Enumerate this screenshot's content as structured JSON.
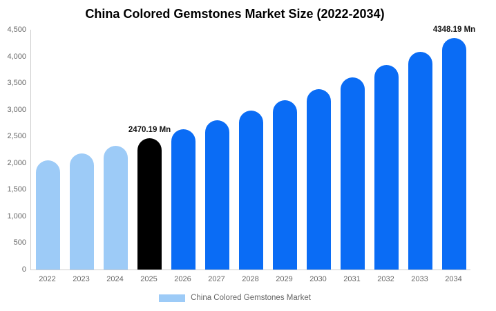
{
  "title": "China Colored Gemstones Market Size (2022-2034)",
  "colors": {
    "light_blue": "#9dcbf7",
    "blue": "#0a6cf5",
    "black": "#000000",
    "axis_line": "#cccccc",
    "tick_text": "#666666"
  },
  "legend": {
    "label": "China Colored Gemstones Market",
    "swatch_color": "#9dcbf7"
  },
  "chart_data": {
    "type": "bar",
    "title": "China Colored Gemstones Market Size (2022-2034)",
    "unit": "Mn",
    "categories": [
      "2022",
      "2023",
      "2024",
      "2025",
      "2026",
      "2027",
      "2028",
      "2029",
      "2030",
      "2031",
      "2032",
      "2033",
      "2034"
    ],
    "values": [
      2046,
      2178,
      2320,
      2470.19,
      2631,
      2801,
      2983,
      3177,
      3383,
      3603,
      3837,
      4086,
      4348.19
    ],
    "bar_color_roles": [
      "light",
      "light",
      "light",
      "black",
      "blue",
      "blue",
      "blue",
      "blue",
      "blue",
      "blue",
      "blue",
      "blue",
      "blue"
    ],
    "data_labels": [
      {
        "index": 3,
        "text": "2470.19 Mn"
      },
      {
        "index": 12,
        "text": "4348.19 Mn"
      }
    ],
    "xlabel": "",
    "ylabel": "",
    "ylim": [
      0,
      4500
    ],
    "ytick_step": 500,
    "ytick_labels": [
      "0",
      "500",
      "1,000",
      "1,500",
      "2,000",
      "2,500",
      "3,000",
      "3,500",
      "4,000",
      "4,500"
    ],
    "grid": false,
    "legend_position": "bottom",
    "legend_entries": [
      "China Colored Gemstones Market"
    ]
  }
}
